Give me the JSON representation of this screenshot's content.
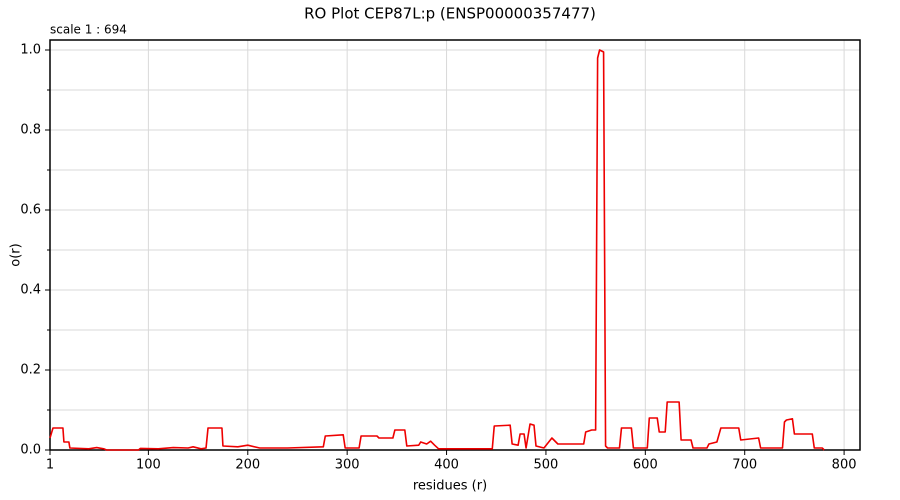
{
  "chart_data": {
    "type": "line",
    "title": "RO Plot CEP87L:p (ENSP00000357477)",
    "subtitle": "scale 1 : 694",
    "x_label": "residues (r)",
    "y_label": "o(r)",
    "xlim": [
      1,
      816
    ],
    "ylim": [
      0,
      1.025
    ],
    "xticks": [
      1,
      100,
      200,
      300,
      400,
      500,
      600,
      700,
      800
    ],
    "yticks": [
      {
        "value": 0,
        "label": "0.0"
      },
      0.2,
      0.4,
      0.6,
      0.8,
      {
        "value": 1,
        "label": "1.0"
      }
    ],
    "minor_yticks": [
      0.1,
      0.3,
      0.5,
      0.7,
      0.9
    ],
    "grid": true,
    "x": [
      1,
      4,
      14,
      15,
      20,
      21,
      40,
      48,
      55,
      58,
      90,
      92,
      110,
      125,
      140,
      145,
      153,
      158,
      160,
      174,
      175,
      190,
      200,
      212,
      240,
      276,
      278,
      296,
      298,
      312,
      314,
      330,
      332,
      346,
      348,
      358,
      360,
      372,
      374,
      380,
      384,
      388,
      392,
      446,
      448,
      464,
      466,
      472,
      474,
      478,
      480,
      484,
      488,
      490,
      498,
      506,
      510,
      512,
      538,
      540,
      546,
      550,
      552,
      554,
      558,
      560,
      562,
      574,
      576,
      586,
      588,
      602,
      604,
      612,
      614,
      620,
      622,
      634,
      636,
      646,
      648,
      662,
      664,
      672,
      676,
      694,
      696,
      714,
      716,
      738,
      740,
      742,
      748,
      750,
      768,
      770,
      778,
      780
    ],
    "series": [
      {
        "name": "o(r)",
        "color": "#ee0000",
        "values": [
          0.03,
          0.055,
          0.055,
          0.02,
          0.02,
          0.005,
          0.003,
          0.006,
          0.003,
          0,
          0,
          0.004,
          0.003,
          0.006,
          0.005,
          0.008,
          0.003,
          0.005,
          0.055,
          0.055,
          0.01,
          0.008,
          0.012,
          0.005,
          0.005,
          0.008,
          0.035,
          0.038,
          0.005,
          0.005,
          0.035,
          0.035,
          0.03,
          0.03,
          0.05,
          0.05,
          0.01,
          0.012,
          0.02,
          0.015,
          0.022,
          0.012,
          0.003,
          0.003,
          0.06,
          0.062,
          0.015,
          0.012,
          0.04,
          0.04,
          0.005,
          0.065,
          0.062,
          0.01,
          0.005,
          0.03,
          0.02,
          0.015,
          0.015,
          0.045,
          0.05,
          0.05,
          0.98,
          1.0,
          0.995,
          0.01,
          0.005,
          0.005,
          0.055,
          0.055,
          0.005,
          0.005,
          0.08,
          0.08,
          0.045,
          0.045,
          0.12,
          0.12,
          0.025,
          0.025,
          0.005,
          0.005,
          0.015,
          0.02,
          0.055,
          0.055,
          0.025,
          0.03,
          0.005,
          0.005,
          0.07,
          0.075,
          0.078,
          0.04,
          0.04,
          0.005,
          0.005,
          0
        ]
      }
    ]
  }
}
